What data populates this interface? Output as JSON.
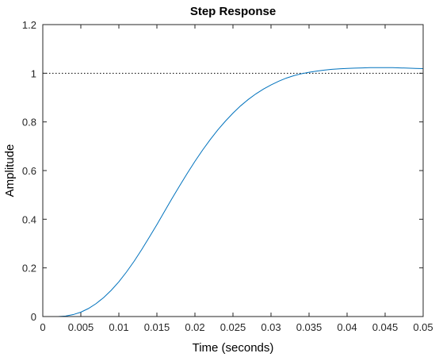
{
  "chart_data": {
    "type": "line",
    "title": "Step Response",
    "xlabel": "Time (seconds)",
    "ylabel": "Amplitude",
    "xlim": [
      0,
      0.05
    ],
    "ylim": [
      0,
      1.2
    ],
    "x_ticks": [
      "0",
      "0.005",
      "0.01",
      "0.015",
      "0.02",
      "0.025",
      "0.03",
      "0.035",
      "0.04",
      "0.045",
      "0.05"
    ],
    "y_ticks": [
      "0",
      "0.2",
      "0.4",
      "0.6",
      "0.8",
      "1",
      "1.2"
    ],
    "grid": false,
    "series": [
      {
        "color": "#0072BD",
        "x": [
          0,
          0.002,
          0.003,
          0.004,
          0.005,
          0.006,
          0.007,
          0.008,
          0.009,
          0.01,
          0.011,
          0.012,
          0.013,
          0.014,
          0.015,
          0.016,
          0.017,
          0.018,
          0.019,
          0.02,
          0.021,
          0.022,
          0.023,
          0.024,
          0.025,
          0.026,
          0.027,
          0.028,
          0.029,
          0.03,
          0.031,
          0.032,
          0.033,
          0.034,
          0.035,
          0.036,
          0.037,
          0.038,
          0.039,
          0.04,
          0.041,
          0.042,
          0.043,
          0.044,
          0.045,
          0.046,
          0.047,
          0.048,
          0.049,
          0.05
        ],
        "y": [
          0,
          0,
          0.002,
          0.008,
          0.018,
          0.033,
          0.053,
          0.078,
          0.108,
          0.143,
          0.183,
          0.227,
          0.275,
          0.326,
          0.378,
          0.432,
          0.486,
          0.538,
          0.589,
          0.638,
          0.684,
          0.727,
          0.767,
          0.803,
          0.836,
          0.866,
          0.892,
          0.915,
          0.935,
          0.952,
          0.967,
          0.98,
          0.99,
          0.998,
          1.004,
          1.009,
          1.013,
          1.016,
          1.018,
          1.02,
          1.021,
          1.022,
          1.023,
          1.023,
          1.023,
          1.023,
          1.022,
          1.021,
          1.02,
          1.019
        ]
      }
    ],
    "reference_line": {
      "y": 1,
      "style": "dotted",
      "color": "#000000"
    }
  }
}
